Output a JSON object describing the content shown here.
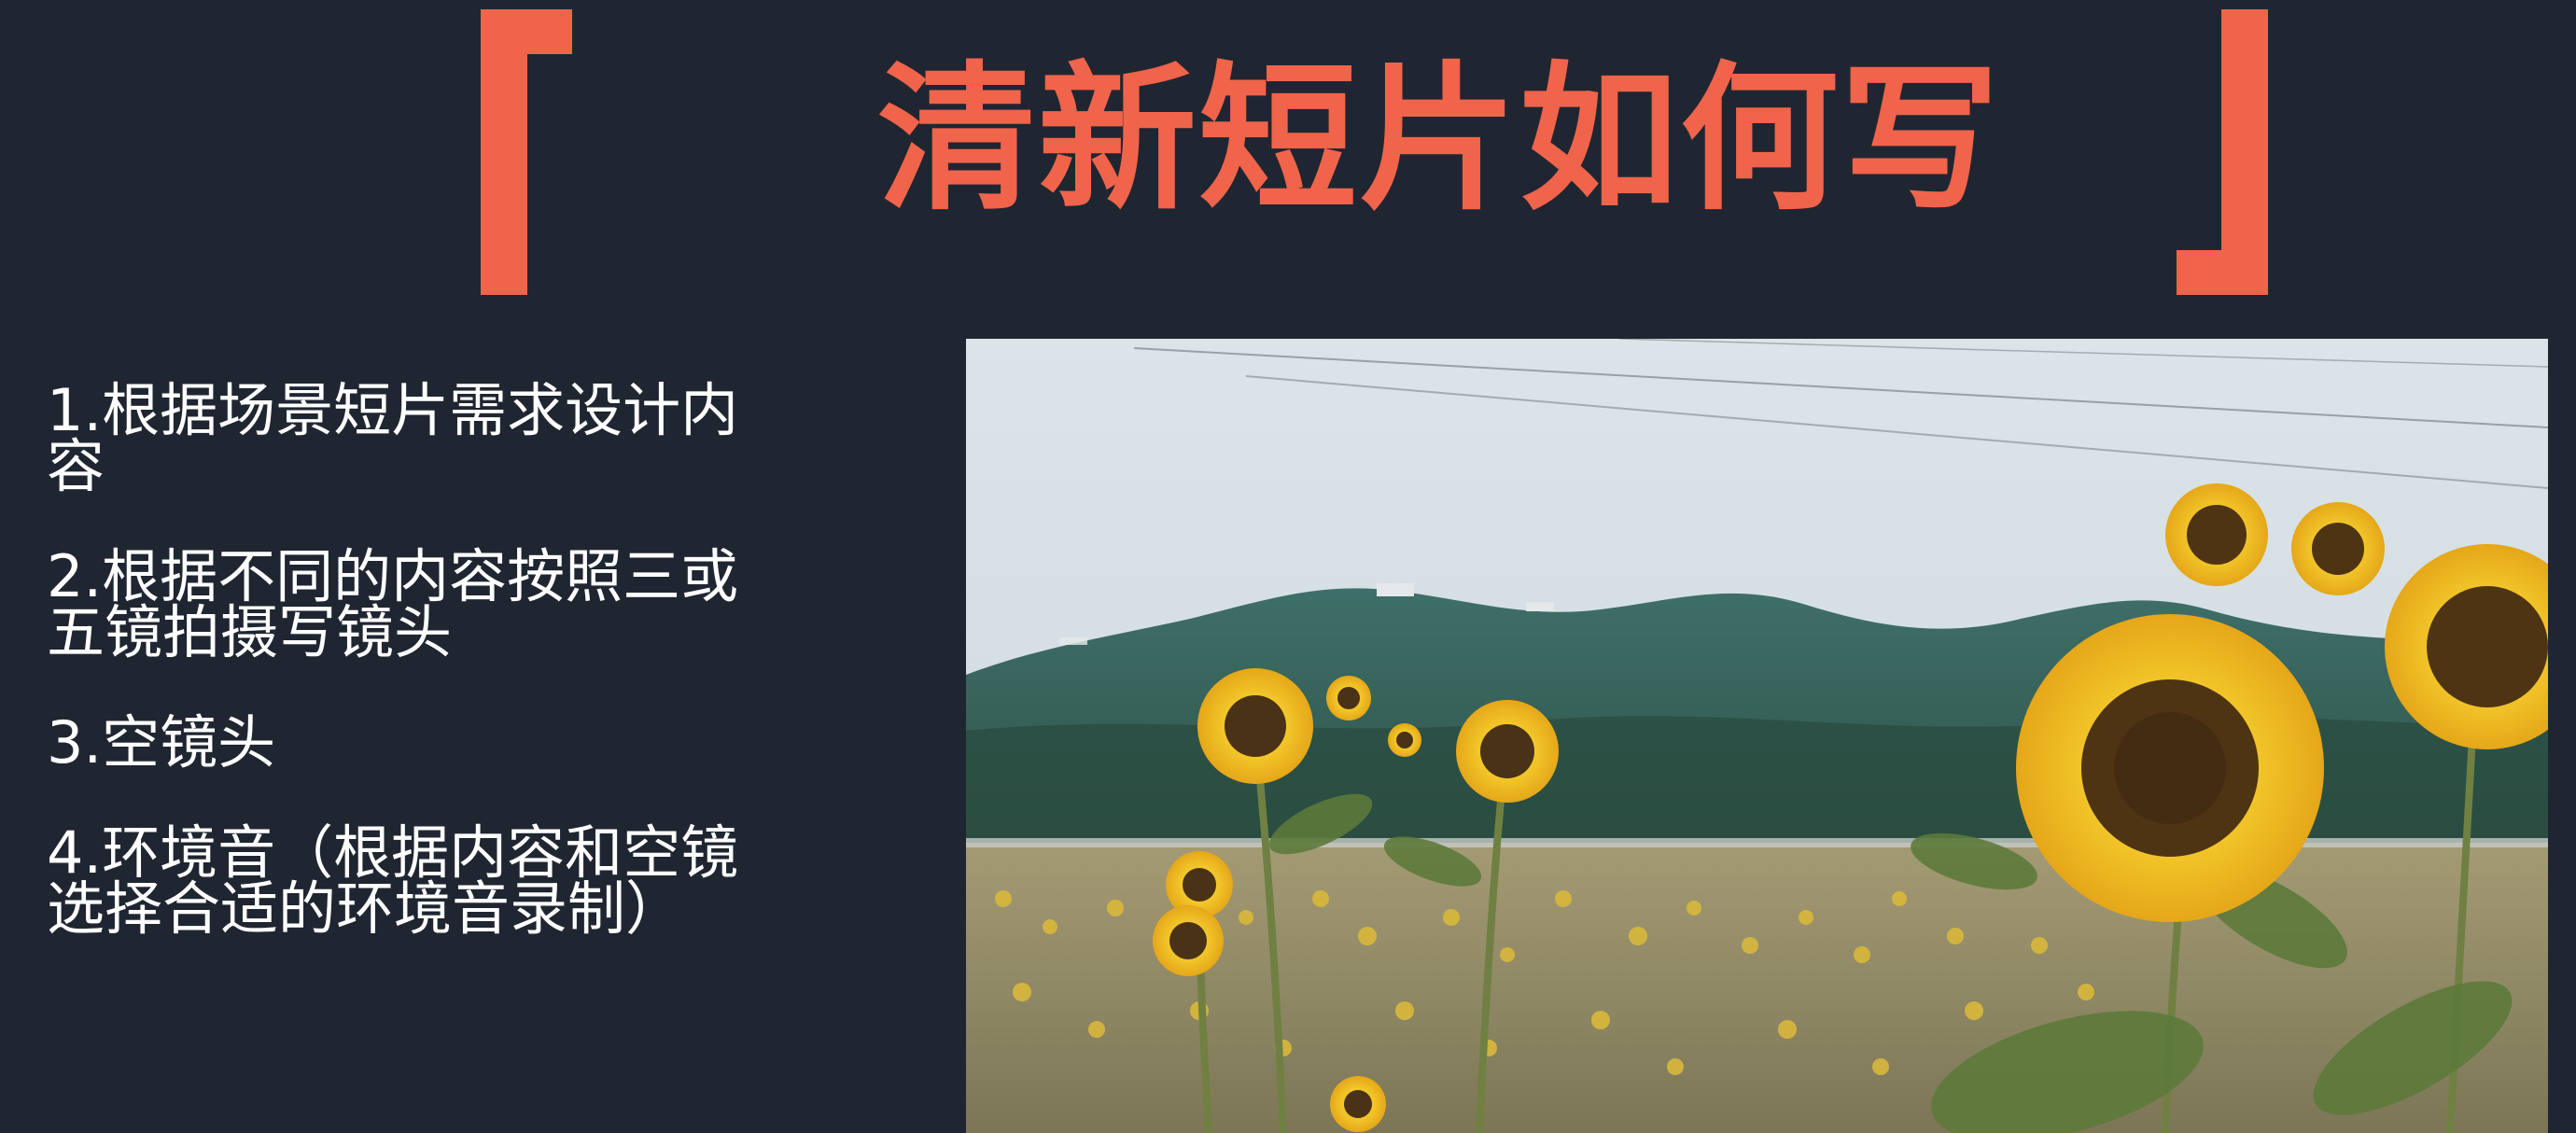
{
  "slide": {
    "title": "清新短片如何写",
    "accent_color": "#f0644b",
    "background_color": "#1f2631",
    "items": [
      "1.根据场景短片需求设计内容",
      "2.根据不同的内容按照三或五镜拍摄写镜头",
      "3.空镜头",
      "4.环境音（根据内容和空镜选择合适的环境音录制）"
    ]
  }
}
